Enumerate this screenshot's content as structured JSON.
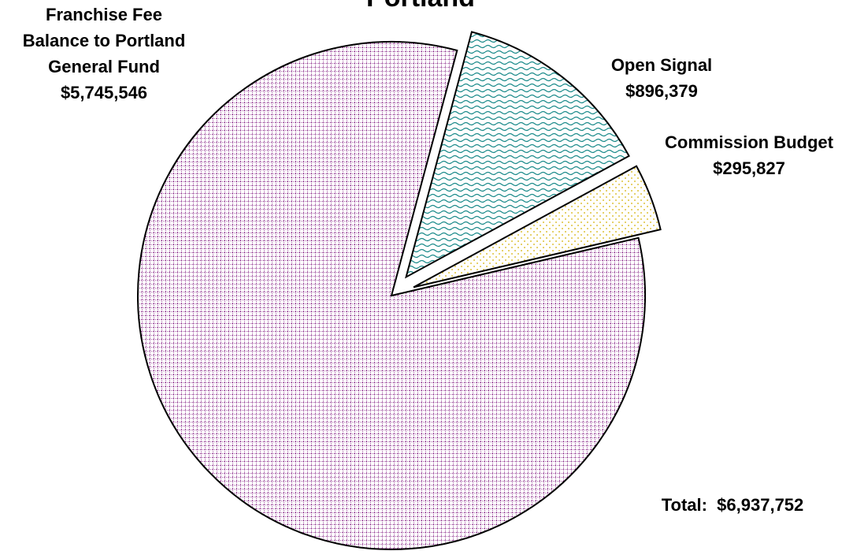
{
  "chart_data": {
    "type": "pie",
    "title": "Portland",
    "categories": [
      "Open Signal",
      "Commission Budget",
      "Franchise Fee Balance to Portland General Fund"
    ],
    "values": [
      896379,
      295827,
      5745546
    ],
    "value_labels": [
      "$896,379",
      "$295,827",
      "$5,745,546"
    ],
    "colors": [
      "#1a8a8a",
      "#d4b000",
      "#8a2a8a"
    ],
    "annotations": [
      "Total:  $6,937,752"
    ]
  }
}
